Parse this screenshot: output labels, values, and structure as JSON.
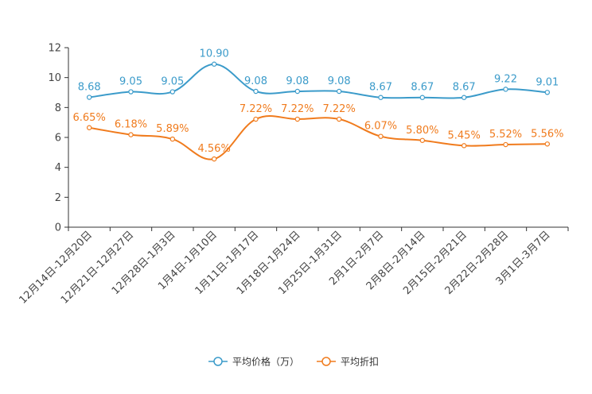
{
  "chart_data": {
    "type": "line",
    "title": "",
    "xlabel": "",
    "ylabel": "",
    "ylim": [
      0,
      12
    ],
    "yticks": [
      0,
      2,
      4,
      6,
      8,
      10,
      12
    ],
    "categories": [
      "12月14日-12月20日",
      "12月21日-12月27日",
      "12月28日-1月3日",
      "1月4日-1月10日",
      "1月11日-1月17日",
      "1月18日-1月24日",
      "1月25日-1月31日",
      "2月1日-2月7日",
      "2月8日-2月14日",
      "2月15日-2月21日",
      "2月22日-2月28日",
      "3月1日-3月7日"
    ],
    "series": [
      {
        "name": "平均价格（万）",
        "color": "#3b9bca",
        "values": [
          8.68,
          9.05,
          9.05,
          10.9,
          9.08,
          9.08,
          9.08,
          8.67,
          8.67,
          8.67,
          9.22,
          9.01
        ],
        "labels": [
          "8.68",
          "9.05",
          "9.05",
          "10.90",
          "9.08",
          "9.08",
          "9.08",
          "8.67",
          "8.67",
          "8.67",
          "9.22",
          "9.01"
        ]
      },
      {
        "name": "平均折扣",
        "color": "#f07b1d",
        "values": [
          6.65,
          6.18,
          5.89,
          4.56,
          7.22,
          7.22,
          7.22,
          6.07,
          5.8,
          5.45,
          5.52,
          5.56
        ],
        "labels": [
          "6.65%",
          "6.18%",
          "5.89%",
          "4.56%",
          "7.22%",
          "7.22%",
          "7.22%",
          "6.07%",
          "5.80%",
          "5.45%",
          "5.52%",
          "5.56%"
        ]
      }
    ],
    "legend_position": "bottom-center"
  }
}
